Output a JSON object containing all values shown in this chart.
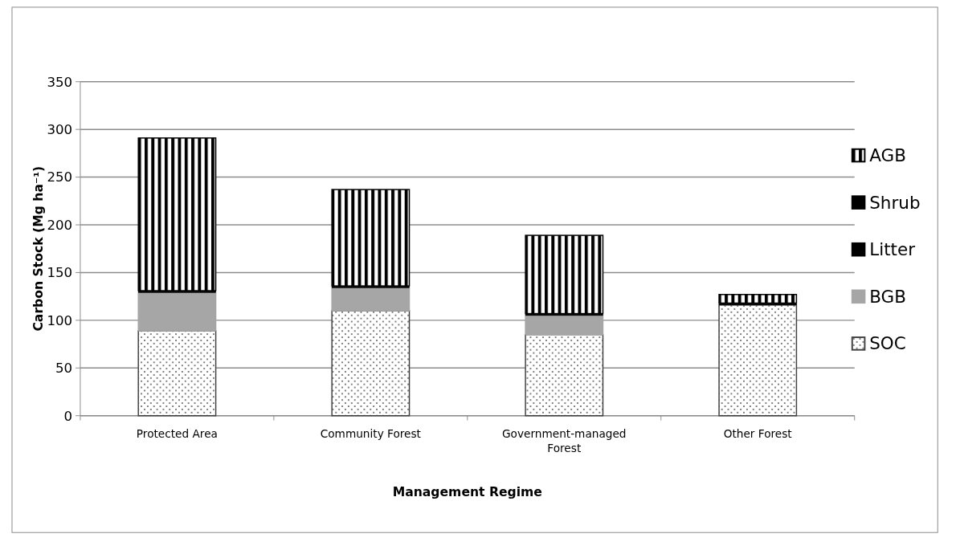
{
  "chart_data": {
    "type": "bar",
    "stacked": true,
    "xlabel": "Management Regime",
    "ylabel": "Carbon Stock (Mg ha⁻¹)",
    "categories": [
      "Protected Area",
      "Community Forest",
      "Government-managed Forest",
      "Other Forest"
    ],
    "series": [
      {
        "name": "SOC",
        "color": "#404040",
        "values": [
          89,
          110,
          85,
          116
        ]
      },
      {
        "name": "BGB",
        "color": "#a6a6a6",
        "values": [
          40,
          24,
          20,
          0
        ]
      },
      {
        "name": "Litter",
        "color": "#000000",
        "values": [
          1,
          1,
          1,
          1
        ]
      },
      {
        "name": "Shrub",
        "color": "#000000",
        "values": [
          1,
          1,
          1,
          1
        ]
      },
      {
        "name": "AGB",
        "color": "#000000",
        "values": [
          160,
          101,
          82,
          9
        ]
      }
    ],
    "ylim": [
      0,
      350
    ],
    "yticks": [
      0,
      50,
      100,
      150,
      200,
      250,
      300,
      350
    ],
    "grid": "y",
    "legend": "right"
  }
}
